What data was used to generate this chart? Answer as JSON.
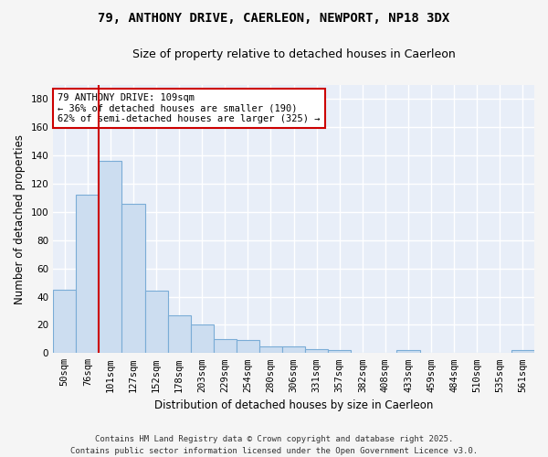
{
  "title": "79, ANTHONY DRIVE, CAERLEON, NEWPORT, NP18 3DX",
  "subtitle": "Size of property relative to detached houses in Caerleon",
  "xlabel": "Distribution of detached houses by size in Caerleon",
  "ylabel": "Number of detached properties",
  "categories": [
    "50sqm",
    "76sqm",
    "101sqm",
    "127sqm",
    "152sqm",
    "178sqm",
    "203sqm",
    "229sqm",
    "254sqm",
    "280sqm",
    "306sqm",
    "331sqm",
    "357sqm",
    "382sqm",
    "408sqm",
    "433sqm",
    "459sqm",
    "484sqm",
    "510sqm",
    "535sqm",
    "561sqm"
  ],
  "values": [
    45,
    112,
    136,
    106,
    44,
    27,
    20,
    10,
    9,
    5,
    5,
    3,
    2,
    0,
    0,
    2,
    0,
    0,
    0,
    0,
    2
  ],
  "bar_color": "#ccddf0",
  "bar_edge_color": "#7aacd6",
  "bar_linewidth": 0.8,
  "red_line_index": 2,
  "red_line_color": "#cc0000",
  "annotation_text": "79 ANTHONY DRIVE: 109sqm\n← 36% of detached houses are smaller (190)\n62% of semi-detached houses are larger (325) →",
  "annotation_box_color": "#ffffff",
  "annotation_box_edge": "#cc0000",
  "plot_bg_color": "#e8eef8",
  "fig_bg_color": "#f5f5f5",
  "grid_color": "#ffffff",
  "ylim": [
    0,
    190
  ],
  "yticks": [
    0,
    20,
    40,
    60,
    80,
    100,
    120,
    140,
    160,
    180
  ],
  "title_fontsize": 10,
  "subtitle_fontsize": 9,
  "xlabel_fontsize": 8.5,
  "ylabel_fontsize": 8.5,
  "tick_fontsize": 7.5,
  "footer_text": "Contains HM Land Registry data © Crown copyright and database right 2025.\nContains public sector information licensed under the Open Government Licence v3.0.",
  "footer_fontsize": 6.5
}
